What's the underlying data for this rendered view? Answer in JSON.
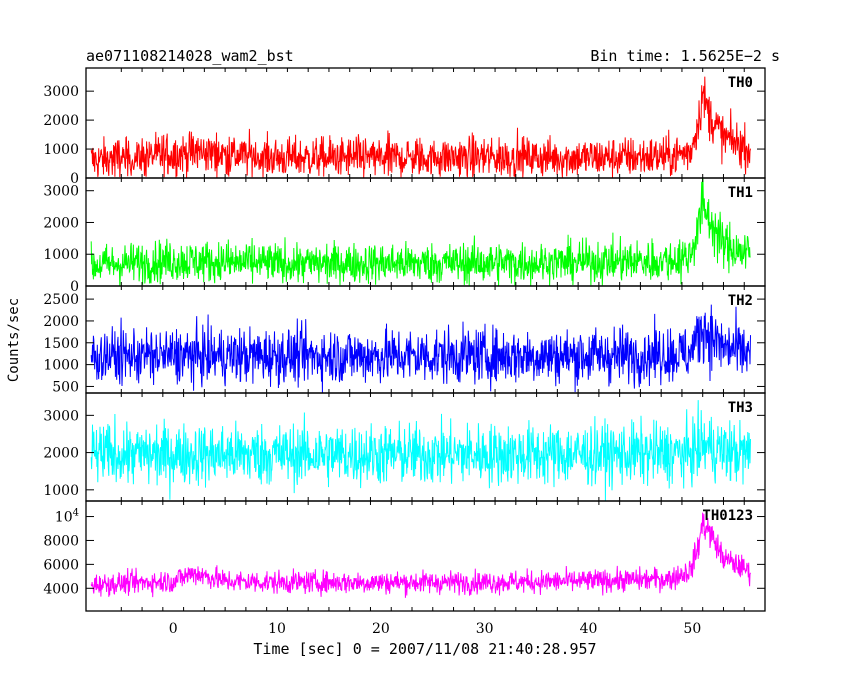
{
  "header": {
    "title": "ae071108214028_wam2_bst",
    "bin_time": "Bin time: 1.5625E−2 s"
  },
  "axes": {
    "xlabel": "Time [sec] 0 = 2007/11/08 21:40:28.957",
    "ylabel": "Counts/sec"
  },
  "chart_data": [
    {
      "type": "line",
      "name": "TH0",
      "color": "#ff0000",
      "xlim": [
        -8.4,
        57
      ],
      "ylim": [
        0,
        3800
      ],
      "yticks": [
        0,
        1000,
        2000,
        3000
      ],
      "ytick_labels": [
        "0",
        "1000",
        "2000",
        "3000"
      ],
      "profile": [
        [
          -7.9,
          600,
          480
        ],
        [
          -2,
          750,
          480
        ],
        [
          0,
          800,
          480
        ],
        [
          2,
          900,
          480
        ],
        [
          10,
          700,
          470
        ],
        [
          20,
          700,
          470
        ],
        [
          30,
          720,
          470
        ],
        [
          40,
          700,
          470
        ],
        [
          48,
          750,
          480
        ],
        [
          49.8,
          900,
          480
        ],
        [
          50.5,
          1800,
          500
        ],
        [
          51,
          2900,
          600
        ],
        [
          51.6,
          2200,
          550
        ],
        [
          53,
          1400,
          520
        ],
        [
          55.6,
          1000,
          500
        ]
      ]
    },
    {
      "type": "line",
      "name": "TH1",
      "color": "#00ff00",
      "xlim": [
        -8.4,
        57
      ],
      "ylim": [
        0,
        3400
      ],
      "yticks": [
        0,
        1000,
        2000,
        3000
      ],
      "ytick_labels": [
        "0",
        "1000",
        "2000",
        "3000"
      ],
      "profile": [
        [
          -7.9,
          650,
          420
        ],
        [
          0,
          800,
          450
        ],
        [
          10,
          700,
          430
        ],
        [
          20,
          720,
          430
        ],
        [
          30,
          720,
          430
        ],
        [
          40,
          750,
          430
        ],
        [
          48,
          800,
          450
        ],
        [
          49.8,
          950,
          470
        ],
        [
          50.5,
          1800,
          520
        ],
        [
          51,
          2600,
          600
        ],
        [
          51.6,
          2100,
          550
        ],
        [
          53,
          1300,
          500
        ],
        [
          55.6,
          1000,
          480
        ]
      ]
    },
    {
      "type": "line",
      "name": "TH2",
      "color": "#0000ff",
      "xlim": [
        -8.4,
        57
      ],
      "ylim": [
        350,
        2800
      ],
      "yticks": [
        500,
        1000,
        1500,
        2000,
        2500
      ],
      "ytick_labels": [
        "500",
        "1000",
        "1500",
        "2000",
        "2500"
      ],
      "profile": [
        [
          -7.9,
          1200,
          430
        ],
        [
          10,
          1200,
          430
        ],
        [
          20,
          1200,
          430
        ],
        [
          30,
          1200,
          430
        ],
        [
          40,
          1200,
          430
        ],
        [
          49.8,
          1250,
          430
        ],
        [
          50.5,
          1600,
          480
        ],
        [
          51,
          1900,
          520
        ],
        [
          51.6,
          1700,
          500
        ],
        [
          53,
          1400,
          450
        ],
        [
          55.6,
          1250,
          430
        ]
      ]
    },
    {
      "type": "line",
      "name": "TH3",
      "color": "#00ffff",
      "xlim": [
        -8.4,
        57
      ],
      "ylim": [
        700,
        3600
      ],
      "yticks": [
        1000,
        2000,
        3000
      ],
      "ytick_labels": [
        "1000",
        "2000",
        "3000"
      ],
      "profile": [
        [
          -7.9,
          1950,
          560
        ],
        [
          10,
          1950,
          560
        ],
        [
          20,
          1950,
          560
        ],
        [
          30,
          1950,
          560
        ],
        [
          40,
          1950,
          560
        ],
        [
          49.8,
          1980,
          560
        ],
        [
          51,
          2200,
          600
        ],
        [
          53,
          2050,
          570
        ],
        [
          55.6,
          1950,
          560
        ]
      ]
    },
    {
      "type": "line",
      "name": "TH0123",
      "color": "#ff00ff",
      "xlim": [
        -8.4,
        57
      ],
      "ylim": [
        2100,
        11300
      ],
      "yticks": [
        4000,
        6000,
        8000,
        10000
      ],
      "ytick_labels": [
        "4000",
        "6000",
        "8000",
        "10⁴"
      ],
      "profile": [
        [
          -7.9,
          4300,
          620
        ],
        [
          0,
          4600,
          650
        ],
        [
          2,
          5300,
          700
        ],
        [
          5,
          4600,
          650
        ],
        [
          10,
          4500,
          640
        ],
        [
          20,
          4500,
          640
        ],
        [
          30,
          4500,
          640
        ],
        [
          40,
          4600,
          640
        ],
        [
          48,
          4800,
          650
        ],
        [
          49.8,
          5500,
          700
        ],
        [
          50.5,
          7200,
          800
        ],
        [
          51,
          9500,
          900
        ],
        [
          51.6,
          8800,
          850
        ],
        [
          53,
          6500,
          700
        ],
        [
          55.6,
          5400,
          650
        ]
      ]
    }
  ],
  "xticks": [
    0,
    10,
    20,
    30,
    40,
    50
  ],
  "xtick_labels": [
    "0",
    "10",
    "20",
    "30",
    "40",
    "50"
  ]
}
